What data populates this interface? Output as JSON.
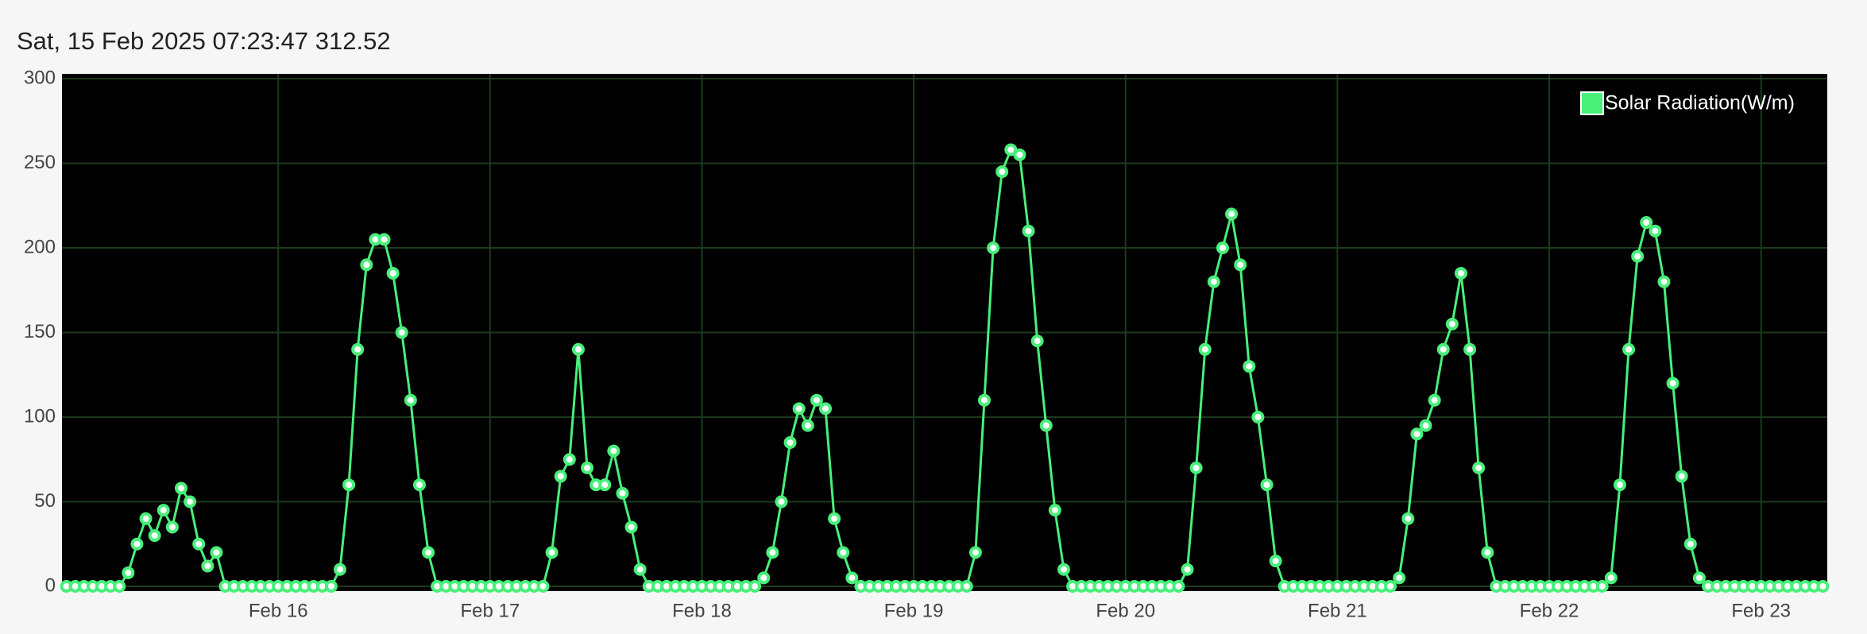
{
  "chart_data": {
    "type": "line",
    "title": "Sat, 15 Feb 2025 07:23:47 312.52",
    "x": [
      0,
      1,
      2,
      3,
      4,
      5,
      6,
      7,
      8,
      9,
      10,
      11,
      12,
      13,
      14,
      15,
      16,
      17,
      18,
      19,
      20,
      21,
      22,
      23,
      24,
      25,
      26,
      27,
      28,
      29,
      30,
      31,
      32,
      33,
      34,
      35,
      36,
      37,
      38,
      39,
      40,
      41,
      42,
      43,
      44,
      45,
      46,
      47,
      48,
      49,
      50,
      51,
      52,
      53,
      54,
      55,
      56,
      57,
      58,
      59,
      60,
      61,
      62,
      63,
      64,
      65,
      66,
      67,
      68,
      69,
      70,
      71,
      72,
      73,
      74,
      75,
      76,
      77,
      78,
      79,
      80,
      81,
      82,
      83,
      84,
      85,
      86,
      87,
      88,
      89,
      90,
      91,
      92,
      93,
      94,
      95,
      96,
      97,
      98,
      99,
      100,
      101,
      102,
      103,
      104,
      105,
      106,
      107,
      108,
      109,
      110,
      111,
      112,
      113,
      114,
      115,
      116,
      117,
      118,
      119,
      120,
      121,
      122,
      123,
      124,
      125,
      126,
      127,
      128,
      129,
      130,
      131,
      132,
      133,
      134,
      135,
      136,
      137,
      138,
      139,
      140,
      141,
      142,
      143,
      144,
      145,
      146,
      147,
      148,
      149,
      150,
      151,
      152,
      153,
      154,
      155,
      156,
      157,
      158,
      159,
      160,
      161,
      162,
      163,
      164,
      165,
      166,
      167,
      168,
      169,
      170,
      171,
      172,
      173,
      174,
      175,
      176,
      177,
      178,
      179,
      180,
      181,
      182,
      183,
      184,
      185,
      186,
      187,
      188,
      189,
      190,
      191,
      192,
      193,
      194,
      195,
      196,
      197,
      198,
      199
    ],
    "series": [
      {
        "name": "Solar Radiation(W/m)",
        "color": "#48f07a",
        "values": [
          0,
          0,
          0,
          0,
          0,
          0,
          0,
          8,
          25,
          40,
          30,
          45,
          35,
          58,
          50,
          25,
          12,
          20,
          0,
          0,
          0,
          0,
          0,
          0,
          0,
          0,
          0,
          0,
          0,
          0,
          0,
          10,
          60,
          140,
          190,
          205,
          205,
          185,
          150,
          110,
          60,
          20,
          0,
          0,
          0,
          0,
          0,
          0,
          0,
          0,
          0,
          0,
          0,
          0,
          0,
          20,
          65,
          75,
          140,
          70,
          60,
          60,
          80,
          55,
          35,
          10,
          0,
          0,
          0,
          0,
          0,
          0,
          0,
          0,
          0,
          0,
          0,
          0,
          0,
          5,
          20,
          50,
          85,
          105,
          95,
          110,
          105,
          40,
          20,
          5,
          0,
          0,
          0,
          0,
          0,
          0,
          0,
          0,
          0,
          0,
          0,
          0,
          0,
          20,
          110,
          200,
          245,
          258,
          255,
          210,
          145,
          95,
          45,
          10,
          0,
          0,
          0,
          0,
          0,
          0,
          0,
          0,
          0,
          0,
          0,
          0,
          0,
          10,
          70,
          140,
          180,
          200,
          220,
          190,
          130,
          100,
          60,
          15,
          0,
          0,
          0,
          0,
          0,
          0,
          0,
          0,
          0,
          0,
          0,
          0,
          0,
          5,
          40,
          90,
          95,
          110,
          140,
          155,
          185,
          140,
          70,
          20,
          0,
          0,
          0,
          0,
          0,
          0,
          0,
          0,
          0,
          0,
          0,
          0,
          0,
          5,
          60,
          140,
          195,
          215,
          210,
          180,
          120,
          65,
          25,
          5,
          0,
          0,
          0,
          0,
          0,
          0,
          0,
          0,
          0,
          0,
          0,
          0,
          0,
          0
        ]
      }
    ],
    "xlim": [
      -0.5,
      199.5
    ],
    "xticks": [
      {
        "value": 24,
        "label": "Feb 16"
      },
      {
        "value": 48,
        "label": "Feb 17"
      },
      {
        "value": 72,
        "label": "Feb 18"
      },
      {
        "value": 96,
        "label": "Feb 19"
      },
      {
        "value": 120,
        "label": "Feb 20"
      },
      {
        "value": 144,
        "label": "Feb 21"
      },
      {
        "value": 168,
        "label": "Feb 22"
      },
      {
        "value": 192,
        "label": "Feb 23"
      }
    ],
    "ylim": [
      0,
      300
    ],
    "yticks": [
      0,
      50,
      100,
      150,
      200,
      250,
      300
    ],
    "grid": true,
    "legend": "top-right"
  }
}
